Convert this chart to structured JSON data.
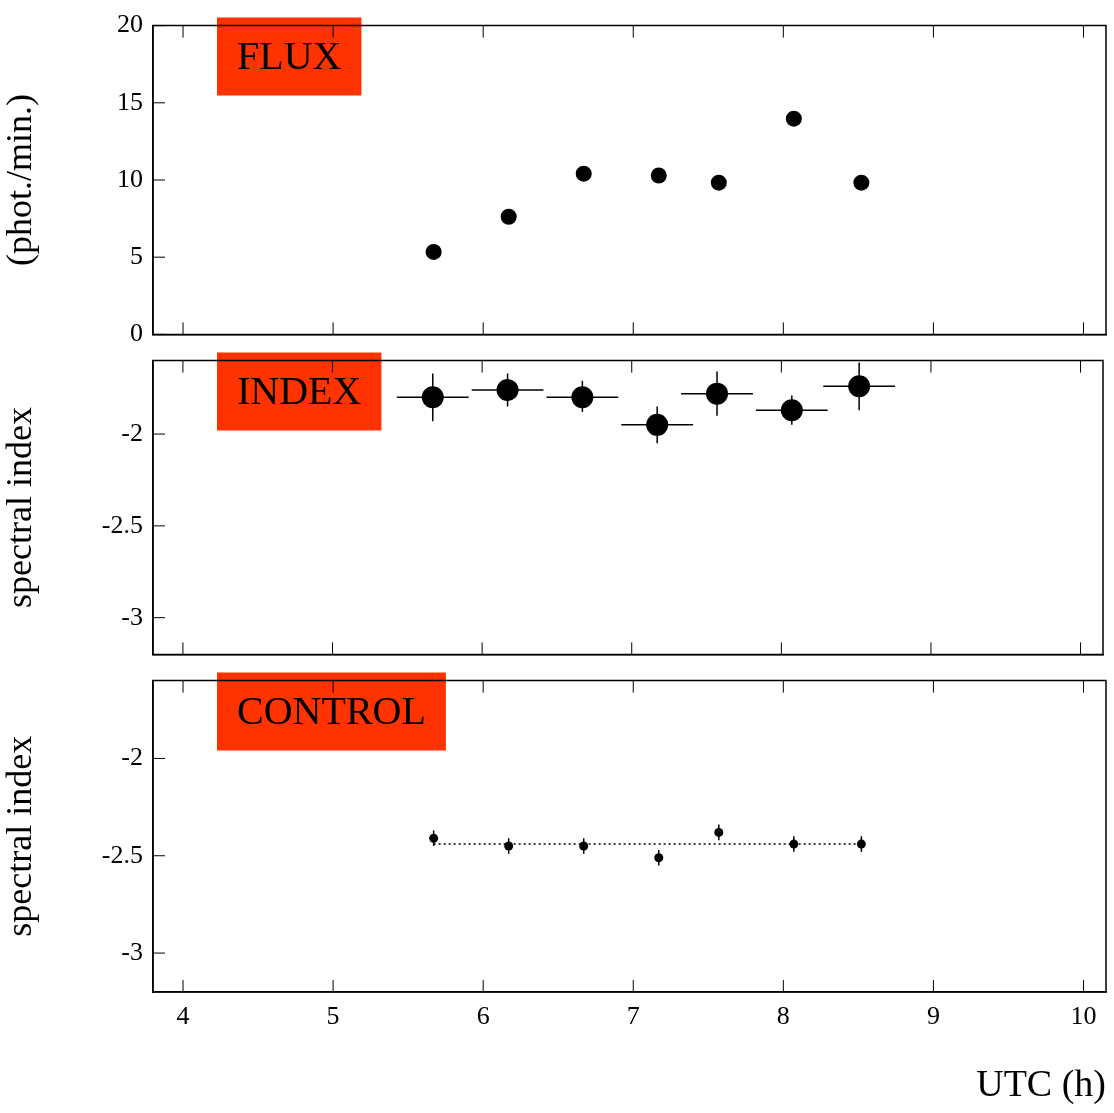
{
  "chart_data": [
    {
      "type": "scatter",
      "ylabel": "(phot./min.)",
      "annotations": [
        "FLUX"
      ],
      "x": [
        5.67,
        6.17,
        6.67,
        7.17,
        7.57,
        8.07,
        8.52
      ],
      "series": [
        {
          "type": "scatter",
          "color": "#000000",
          "values": [
            5.34,
            7.62,
            10.41,
            10.29,
            9.83,
            13.97,
            9.83
          ]
        }
      ],
      "xlim": [
        3.8,
        10.15
      ],
      "xticks": [
        4,
        5,
        6,
        7,
        8,
        9,
        10
      ],
      "ylim": [
        0,
        20
      ],
      "yticks": [
        0,
        5,
        10,
        15,
        20
      ],
      "tick_labels": "y",
      "grid": false,
      "legend": false,
      "marker": "circle"
    },
    {
      "type": "scatter",
      "ylabel": "spectral index",
      "annotations": [
        "INDEX"
      ],
      "x": [
        5.67,
        6.17,
        6.67,
        7.17,
        7.57,
        8.07,
        8.52
      ],
      "series": [
        {
          "type": "scatter",
          "color": "#000000",
          "values": [
            -1.8,
            -1.76,
            -1.8,
            -1.95,
            -1.78,
            -1.87,
            -1.74
          ],
          "errors": [
            [
              -1.93,
              -1.67
            ],
            [
              -1.85,
              -1.67
            ],
            [
              -1.88,
              -1.71
            ],
            [
              -2.05,
              -1.85
            ],
            [
              -1.9,
              -1.66
            ],
            [
              -1.95,
              -1.79
            ],
            [
              -1.87,
              -1.61
            ]
          ],
          "xerrors": [
            0.24,
            0.24,
            0.24,
            0.24,
            0.24,
            0.24,
            0.24
          ]
        }
      ],
      "xlim": [
        3.8,
        10.15
      ],
      "xticks": [
        4,
        5,
        6,
        7,
        8,
        9,
        10
      ],
      "ylim": [
        -3.2,
        -1.6
      ],
      "yticks": [
        -2,
        -2.5,
        -3
      ],
      "tick_labels": "y",
      "grid": false,
      "legend": false,
      "marker": "circle"
    },
    {
      "type": "scatter",
      "ylabel": "spectral index",
      "xlabel": "UTC (h)",
      "annotations": [
        "CONTROL"
      ],
      "x": [
        5.67,
        6.17,
        6.67,
        7.17,
        7.57,
        8.07,
        8.52
      ],
      "series": [
        {
          "type": "scatter",
          "color": "#000000",
          "values": [
            -2.41,
            -2.45,
            -2.45,
            -2.51,
            -2.38,
            -2.44,
            -2.44
          ],
          "errors": [
            0.04,
            0.04,
            0.04,
            0.04,
            0.04,
            0.04,
            0.04
          ]
        },
        {
          "type": "line",
          "color": "#000000",
          "x": [
            5.67,
            8.52
          ],
          "values": [
            -2.44,
            -2.44
          ],
          "line_style": "dotted",
          "marker": "none"
        }
      ],
      "xlim": [
        3.8,
        10.15
      ],
      "xticks": [
        4,
        5,
        6,
        7,
        8,
        9,
        10
      ],
      "ylim": [
        -3.2,
        -1.6
      ],
      "yticks": [
        -2,
        -2.5,
        -3
      ],
      "grid": false,
      "legend": false,
      "marker": "circle"
    }
  ]
}
